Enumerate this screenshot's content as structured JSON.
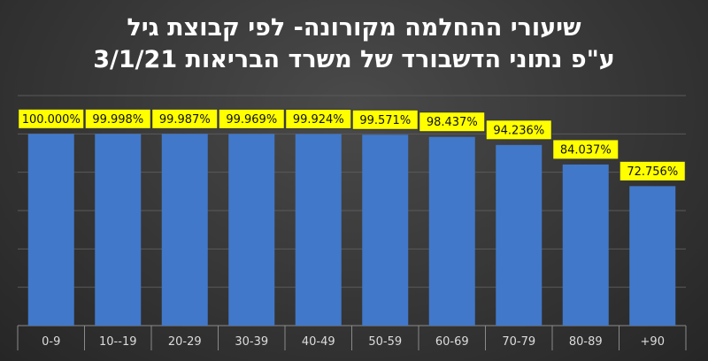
{
  "chart_data": {
    "type": "bar",
    "title_line1": "שיעורי ההחלמה מקורונה- לפי קבוצת גיל",
    "title_line2": "ע\"פ נתוני הדשבורד של משרד הבריאות 3/1/21",
    "categories": [
      "0-9",
      "10--19",
      "20-29",
      "30-39",
      "40-49",
      "50-59",
      "60-69",
      "70-79",
      "80-89",
      "+90"
    ],
    "values": [
      100.0,
      99.998,
      99.987,
      99.969,
      99.924,
      99.571,
      98.437,
      94.236,
      84.037,
      72.756
    ],
    "data_labels": [
      "100.000%",
      "99.998%",
      "99.987%",
      "99.969%",
      "99.924%",
      "99.571%",
      "98.437%",
      "94.236%",
      "84.037%",
      "72.756%"
    ],
    "ylim": [
      0,
      120
    ],
    "grid": true,
    "colors": {
      "bar": "#4178c9",
      "label_background": "#ffff00",
      "background": "#363636",
      "text": "#ffffff"
    }
  }
}
